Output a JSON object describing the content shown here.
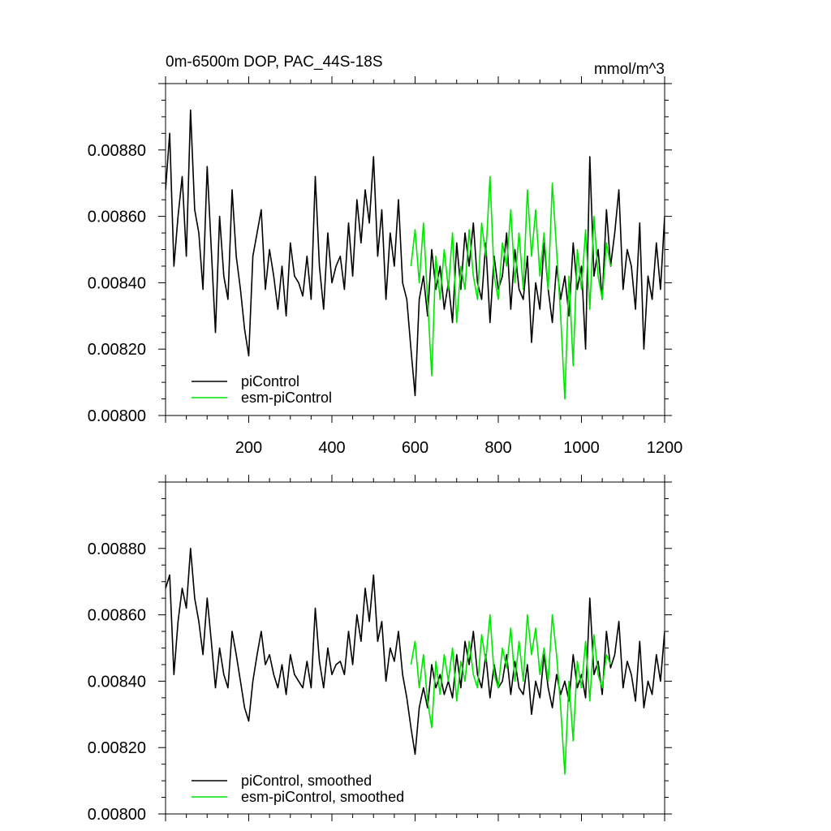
{
  "chart_data": [
    {
      "type": "line",
      "title": "0m-6500m DOP, PAC_44S-18S",
      "units": "mmol/m^3",
      "xlabel": "",
      "ylabel": "",
      "xlim": [
        0,
        1200
      ],
      "ylim": [
        0.008,
        0.009
      ],
      "xticks": [
        200,
        400,
        600,
        800,
        1000,
        1200
      ],
      "xtick_labels": [
        "200",
        "400",
        "600",
        "800",
        "1000",
        "1200"
      ],
      "yticks": [
        0.008,
        0.0082,
        0.0084,
        0.0086,
        0.0088
      ],
      "ytick_labels": [
        "0.00800",
        "0.00820",
        "0.00840",
        "0.00860",
        "0.00880"
      ],
      "legend_position": "bottom-left",
      "series": [
        {
          "name": "piControl",
          "color": "#000000",
          "x": [
            0,
            10,
            20,
            30,
            40,
            50,
            60,
            70,
            80,
            90,
            100,
            110,
            120,
            130,
            140,
            150,
            160,
            170,
            180,
            190,
            200,
            210,
            220,
            230,
            240,
            250,
            260,
            270,
            280,
            290,
            300,
            310,
            320,
            330,
            340,
            350,
            360,
            370,
            380,
            390,
            400,
            410,
            420,
            430,
            440,
            450,
            460,
            470,
            480,
            490,
            500,
            510,
            520,
            530,
            540,
            550,
            560,
            570,
            580,
            590,
            600,
            610,
            620,
            630,
            640,
            650,
            660,
            670,
            680,
            690,
            700,
            710,
            720,
            730,
            740,
            750,
            760,
            770,
            780,
            790,
            800,
            810,
            820,
            830,
            840,
            850,
            860,
            870,
            880,
            890,
            900,
            910,
            920,
            930,
            940,
            950,
            960,
            970,
            980,
            990,
            1000,
            1010,
            1020,
            1030,
            1040,
            1050,
            1060,
            1070,
            1080,
            1090,
            1100,
            1110,
            1120,
            1130,
            1140,
            1150,
            1160,
            1170,
            1180,
            1190,
            1200
          ],
          "values": [
            0.00868,
            0.00885,
            0.00845,
            0.0086,
            0.00872,
            0.00848,
            0.00892,
            0.00862,
            0.00855,
            0.00838,
            0.00875,
            0.0085,
            0.00825,
            0.0086,
            0.00842,
            0.00835,
            0.00868,
            0.00848,
            0.00838,
            0.00826,
            0.00818,
            0.00848,
            0.00855,
            0.00862,
            0.00838,
            0.0085,
            0.00842,
            0.00832,
            0.00845,
            0.0083,
            0.00852,
            0.00842,
            0.0084,
            0.00836,
            0.00848,
            0.00835,
            0.00872,
            0.00845,
            0.00832,
            0.00855,
            0.0084,
            0.00845,
            0.00848,
            0.00838,
            0.00858,
            0.00842,
            0.00865,
            0.00852,
            0.00868,
            0.00858,
            0.00878,
            0.00848,
            0.00862,
            0.00835,
            0.00855,
            0.00845,
            0.00865,
            0.0084,
            0.00835,
            0.0082,
            0.00806,
            0.00835,
            0.00842,
            0.0083,
            0.0085,
            0.00838,
            0.00845,
            0.00832,
            0.0084,
            0.00828,
            0.00852,
            0.00838,
            0.00855,
            0.00845,
            0.00858,
            0.0084,
            0.00835,
            0.00852,
            0.00828,
            0.00848,
            0.00838,
            0.00842,
            0.00855,
            0.00832,
            0.0085,
            0.00838,
            0.00835,
            0.00848,
            0.00822,
            0.0084,
            0.00832,
            0.00852,
            0.00838,
            0.00828,
            0.00845,
            0.00835,
            0.00842,
            0.0083,
            0.00852,
            0.00838,
            0.00845,
            0.0082,
            0.00878,
            0.00842,
            0.0085,
            0.00835,
            0.00862,
            0.00845,
            0.00855,
            0.00868,
            0.00838,
            0.0085,
            0.00845,
            0.00832,
            0.00858,
            0.0082,
            0.00842,
            0.00835,
            0.00852,
            0.00838,
            0.0086
          ]
        },
        {
          "name": "esm-piControl",
          "color": "#00e600",
          "x": [
            590,
            600,
            610,
            620,
            630,
            640,
            650,
            660,
            670,
            680,
            690,
            700,
            710,
            720,
            730,
            740,
            750,
            760,
            770,
            780,
            790,
            800,
            810,
            820,
            830,
            840,
            850,
            860,
            870,
            880,
            890,
            900,
            910,
            920,
            930,
            940,
            950,
            960,
            970,
            980,
            990,
            1000,
            1010,
            1020,
            1030,
            1040,
            1050,
            1060,
            1070
          ],
          "values": [
            0.00845,
            0.00856,
            0.0084,
            0.00858,
            0.00835,
            0.00812,
            0.00848,
            0.00835,
            0.0085,
            0.00838,
            0.00855,
            0.00828,
            0.00845,
            0.00838,
            0.00856,
            0.00842,
            0.00835,
            0.00858,
            0.00848,
            0.00872,
            0.00842,
            0.00835,
            0.00852,
            0.00845,
            0.00862,
            0.0084,
            0.00855,
            0.00838,
            0.00868,
            0.00848,
            0.00862,
            0.00842,
            0.00855,
            0.00838,
            0.0087,
            0.0085,
            0.0083,
            0.00805,
            0.00842,
            0.00815,
            0.0085,
            0.00838,
            0.00856,
            0.00832,
            0.0086,
            0.00842,
            0.00835,
            0.00852,
            0.00845
          ]
        }
      ]
    },
    {
      "type": "line",
      "title": "",
      "xlabel": "",
      "ylabel": "",
      "xlim": [
        0,
        1200
      ],
      "ylim": [
        0.008,
        0.009
      ],
      "yticks": [
        0.008,
        0.0082,
        0.0084,
        0.0086,
        0.0088
      ],
      "ytick_labels": [
        "0.00800",
        "0.00820",
        "0.00840",
        "0.00860",
        "0.00880"
      ],
      "legend_position": "bottom-left",
      "series": [
        {
          "name": "piControl, smoothed",
          "color": "#000000",
          "x": [
            0,
            10,
            20,
            30,
            40,
            50,
            60,
            70,
            80,
            90,
            100,
            110,
            120,
            130,
            140,
            150,
            160,
            170,
            180,
            190,
            200,
            210,
            220,
            230,
            240,
            250,
            260,
            270,
            280,
            290,
            300,
            310,
            320,
            330,
            340,
            350,
            360,
            370,
            380,
            390,
            400,
            410,
            420,
            430,
            440,
            450,
            460,
            470,
            480,
            490,
            500,
            510,
            520,
            530,
            540,
            550,
            560,
            570,
            580,
            590,
            600,
            610,
            620,
            630,
            640,
            650,
            660,
            670,
            680,
            690,
            700,
            710,
            720,
            730,
            740,
            750,
            760,
            770,
            780,
            790,
            800,
            810,
            820,
            830,
            840,
            850,
            860,
            870,
            880,
            890,
            900,
            910,
            920,
            930,
            940,
            950,
            960,
            970,
            980,
            990,
            1000,
            1010,
            1020,
            1030,
            1040,
            1050,
            1060,
            1070,
            1080,
            1090,
            1100,
            1110,
            1120,
            1130,
            1140,
            1150,
            1160,
            1170,
            1180,
            1190,
            1200
          ],
          "values": [
            0.00868,
            0.00872,
            0.00842,
            0.00858,
            0.00868,
            0.00862,
            0.0088,
            0.00865,
            0.00858,
            0.00848,
            0.00865,
            0.00852,
            0.00838,
            0.0085,
            0.00842,
            0.00838,
            0.00855,
            0.00848,
            0.0084,
            0.00832,
            0.00828,
            0.0084,
            0.00848,
            0.00855,
            0.00845,
            0.00848,
            0.00842,
            0.00838,
            0.00845,
            0.00836,
            0.00848,
            0.00842,
            0.0084,
            0.00838,
            0.00846,
            0.00838,
            0.00862,
            0.00846,
            0.00838,
            0.0085,
            0.00842,
            0.00845,
            0.00846,
            0.00842,
            0.00855,
            0.00845,
            0.0086,
            0.00852,
            0.00868,
            0.00858,
            0.00872,
            0.00852,
            0.00858,
            0.0084,
            0.0085,
            0.00846,
            0.00855,
            0.00842,
            0.00835,
            0.00826,
            0.00818,
            0.00832,
            0.00838,
            0.00832,
            0.00845,
            0.00838,
            0.00842,
            0.00836,
            0.0084,
            0.00835,
            0.00848,
            0.00838,
            0.00852,
            0.00845,
            0.00855,
            0.00842,
            0.00838,
            0.00848,
            0.00835,
            0.00845,
            0.00838,
            0.0084,
            0.00848,
            0.00836,
            0.00846,
            0.00838,
            0.00836,
            0.00845,
            0.0083,
            0.0084,
            0.00835,
            0.00848,
            0.00838,
            0.00832,
            0.00842,
            0.00836,
            0.0084,
            0.00834,
            0.00848,
            0.00838,
            0.00842,
            0.00835,
            0.00865,
            0.00842,
            0.00846,
            0.00836,
            0.00855,
            0.00844,
            0.00848,
            0.00858,
            0.00838,
            0.00846,
            0.00842,
            0.00834,
            0.00852,
            0.00832,
            0.0084,
            0.00836,
            0.00848,
            0.0084,
            0.00855
          ]
        },
        {
          "name": "esm-piControl, smoothed",
          "color": "#00e600",
          "x": [
            590,
            600,
            610,
            620,
            630,
            640,
            650,
            660,
            670,
            680,
            690,
            700,
            710,
            720,
            730,
            740,
            750,
            760,
            770,
            780,
            790,
            800,
            810,
            820,
            830,
            840,
            850,
            860,
            870,
            880,
            890,
            900,
            910,
            920,
            930,
            940,
            950,
            960,
            970,
            980,
            990,
            1000,
            1010,
            1020,
            1030,
            1040,
            1050,
            1060,
            1070
          ],
          "values": [
            0.00845,
            0.00852,
            0.00838,
            0.00848,
            0.00834,
            0.00826,
            0.00846,
            0.00836,
            0.00848,
            0.0084,
            0.0085,
            0.00834,
            0.00846,
            0.0084,
            0.00852,
            0.00842,
            0.00838,
            0.00854,
            0.00846,
            0.0086,
            0.00842,
            0.00838,
            0.0085,
            0.00844,
            0.00856,
            0.0084,
            0.00852,
            0.0084,
            0.0086,
            0.00848,
            0.00856,
            0.00842,
            0.0085,
            0.0084,
            0.0086,
            0.00848,
            0.00832,
            0.00812,
            0.0084,
            0.00822,
            0.00846,
            0.00838,
            0.00852,
            0.00834,
            0.00854,
            0.00842,
            0.00838,
            0.00848,
            0.00845
          ]
        }
      ]
    }
  ]
}
